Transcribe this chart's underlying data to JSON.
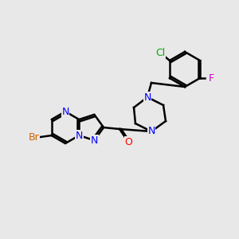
{
  "bg_color": "#e8e8e8",
  "bond_color": "#000000",
  "bond_width": 1.5,
  "font_size": 9,
  "atom_colors": {
    "Br": "#cc6600",
    "N": "#0000ff",
    "O": "#ff0000",
    "Cl": "#00aa00",
    "F": "#cc00cc",
    "C": "#000000"
  }
}
